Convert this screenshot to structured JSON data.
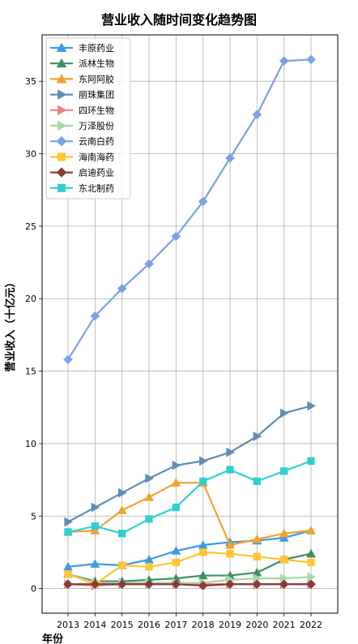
{
  "chart_data": {
    "type": "line",
    "title": "营业收入随时间变化趋势图",
    "xlabel": "年份",
    "ylabel": "营业收入（十亿元）",
    "x": [
      "2013",
      "2014",
      "2015",
      "2016",
      "2017",
      "2018",
      "2019",
      "2020",
      "2021",
      "2022"
    ],
    "y_ticks": [
      0,
      5,
      10,
      15,
      20,
      25,
      30,
      35
    ],
    "ylim": [
      -1.7,
      38.2
    ],
    "grid": true,
    "legend_position": "top-left",
    "series": [
      {
        "name": "丰原药业",
        "color": "#3b9be8",
        "marker": "triangle-up",
        "values": [
          1.5,
          1.7,
          1.6,
          2.0,
          2.6,
          3.0,
          3.2,
          3.3,
          3.5,
          4.0
        ]
      },
      {
        "name": "派林生物",
        "color": "#3f8f62",
        "marker": "triangle-up",
        "values": [
          1.0,
          0.5,
          0.5,
          0.6,
          0.7,
          0.9,
          0.9,
          1.1,
          2.0,
          2.4
        ]
      },
      {
        "name": "东阿阿胶",
        "color": "#f5a030",
        "marker": "triangle-up",
        "values": [
          3.9,
          4.0,
          5.4,
          6.3,
          7.3,
          7.3,
          3.0,
          3.4,
          3.8,
          4.0
        ]
      },
      {
        "name": "丽珠集团",
        "color": "#5f8db5",
        "marker": "triangle-right",
        "values": [
          4.6,
          5.6,
          6.6,
          7.6,
          8.5,
          8.8,
          9.4,
          10.5,
          12.1,
          12.6
        ]
      },
      {
        "name": "四环生物",
        "color": "#f08080",
        "marker": "triangle-right",
        "values": [
          0.3,
          0.2,
          0.3,
          0.3,
          0.3,
          0.3,
          0.3,
          0.3,
          0.3,
          0.3
        ]
      },
      {
        "name": "万泽股份",
        "color": "#a8d8a8",
        "marker": "triangle-right",
        "values": [
          1.0,
          0.4,
          0.4,
          0.4,
          0.4,
          0.4,
          0.6,
          0.7,
          0.7,
          0.8
        ]
      },
      {
        "name": "云南白药",
        "color": "#7ba1e8",
        "marker": "diamond",
        "values": [
          15.8,
          18.8,
          20.7,
          22.4,
          24.3,
          26.7,
          29.7,
          32.7,
          36.4,
          36.5
        ]
      },
      {
        "name": "海南海药",
        "color": "#ffc533",
        "marker": "square",
        "values": [
          1.0,
          0.3,
          1.6,
          1.5,
          1.8,
          2.5,
          2.4,
          2.2,
          2.0,
          1.8
        ]
      },
      {
        "name": "启迪药业",
        "color": "#8b3a3a",
        "marker": "diamond",
        "values": [
          0.3,
          0.3,
          0.3,
          0.3,
          0.3,
          0.2,
          0.3,
          0.3,
          0.3,
          0.3
        ]
      },
      {
        "name": "东北制药",
        "color": "#2ed0d0",
        "marker": "square",
        "values": [
          3.9,
          4.3,
          3.8,
          4.8,
          5.6,
          7.4,
          8.2,
          7.4,
          8.1,
          8.8
        ]
      }
    ]
  }
}
